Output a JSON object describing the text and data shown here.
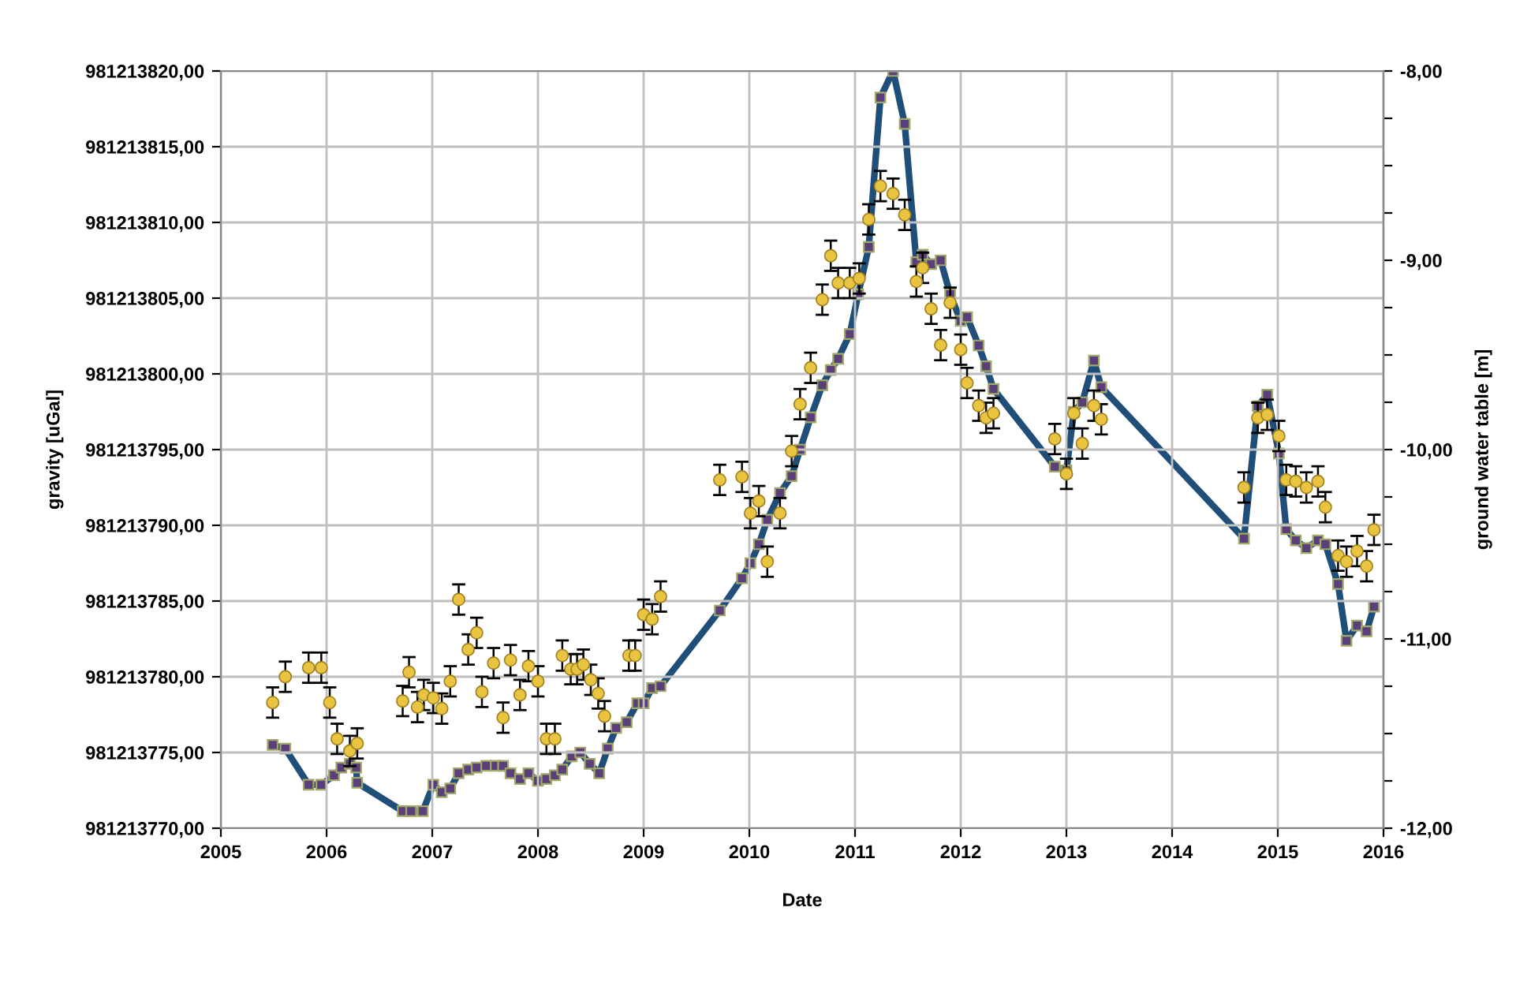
{
  "chart_data": {
    "type": "scatter",
    "xlabel": "Date",
    "ylabel": "gravity [uGal]",
    "y2label": "ground water table [m]",
    "xlim": [
      2005,
      2016
    ],
    "xticks": [
      2005,
      2006,
      2007,
      2008,
      2009,
      2010,
      2011,
      2012,
      2013,
      2014,
      2015,
      2016
    ],
    "ylim": [
      981213770,
      981213820
    ],
    "yticks": [
      {
        "value": 981213770,
        "label": "981213770,00"
      },
      {
        "value": 981213775,
        "label": "981213775,00"
      },
      {
        "value": 981213780,
        "label": "981213780,00"
      },
      {
        "value": 981213785,
        "label": "981213785,00"
      },
      {
        "value": 981213790,
        "label": "981213790,00"
      },
      {
        "value": 981213795,
        "label": "981213795,00"
      },
      {
        "value": 981213800,
        "label": "981213800,00"
      },
      {
        "value": 981213805,
        "label": "981213805,00"
      },
      {
        "value": 981213810,
        "label": "981213810,00"
      },
      {
        "value": 981213815,
        "label": "981213815,00"
      },
      {
        "value": 981213820,
        "label": "981213820,00"
      }
    ],
    "y2lim": [
      -12,
      -8
    ],
    "y2ticks": [
      {
        "value": -12,
        "label": "-12,00"
      },
      {
        "value": -11.75,
        "label": null
      },
      {
        "value": -11.5,
        "label": null
      },
      {
        "value": -11.25,
        "label": null
      },
      {
        "value": -11,
        "label": "-11,00"
      },
      {
        "value": -10.75,
        "label": null
      },
      {
        "value": -10.5,
        "label": null
      },
      {
        "value": -10.25,
        "label": null
      },
      {
        "value": -10,
        "label": "-10,00"
      },
      {
        "value": -9.75,
        "label": null
      },
      {
        "value": -9.5,
        "label": null
      },
      {
        "value": -9.25,
        "label": null
      },
      {
        "value": -9,
        "label": "-9,00"
      },
      {
        "value": -8.75,
        "label": null
      },
      {
        "value": -8.5,
        "label": null
      },
      {
        "value": -8.25,
        "label": null
      },
      {
        "value": -8,
        "label": "-8,00"
      }
    ],
    "grid": true,
    "legend": false,
    "series": [
      {
        "color": "#e8c440",
        "marker": "circle",
        "x": [
          2005.49,
          2005.61,
          2005.83,
          2005.95,
          2006.03,
          2006.1,
          2006.22,
          2006.29,
          2006.72,
          2006.78,
          2006.86,
          2006.92,
          2007.01,
          2007.09,
          2007.17,
          2007.25,
          2007.34,
          2007.42,
          2007.47,
          2007.58,
          2007.67,
          2007.74,
          2007.83,
          2007.91,
          2008.0,
          2008.08,
          2008.16,
          2008.23,
          2008.31,
          2008.37,
          2008.43,
          2008.5,
          2008.57,
          2008.63,
          2008.86,
          2008.92,
          2009.0,
          2009.08,
          2009.16,
          2009.72,
          2009.93,
          2010.01,
          2010.09,
          2010.17,
          2010.29,
          2010.4,
          2010.48,
          2010.58,
          2010.69,
          2010.77,
          2010.84,
          2010.95,
          2011.04,
          2011.13,
          2011.24,
          2011.36,
          2011.47,
          2011.58,
          2011.64,
          2011.72,
          2011.81,
          2011.9,
          2012.0,
          2012.06,
          2012.17,
          2012.24,
          2012.31,
          2012.89,
          2013.0,
          2013.07,
          2013.15,
          2013.26,
          2013.33,
          2014.68,
          2014.81,
          2014.9,
          2015.01,
          2015.08,
          2015.17,
          2015.27,
          2015.38,
          2015.45,
          2015.57,
          2015.65,
          2015.75,
          2015.84,
          2015.91
        ],
        "values": [
          981213778.3,
          981213780.0,
          981213780.6,
          981213780.6,
          981213778.3,
          981213775.9,
          981213775.1,
          981213775.6,
          981213778.4,
          981213780.3,
          981213778.0,
          981213778.8,
          981213778.6,
          981213777.9,
          981213779.7,
          981213785.1,
          981213781.8,
          981213782.9,
          981213779.0,
          981213780.9,
          981213777.3,
          981213781.1,
          981213778.8,
          981213780.7,
          981213779.7,
          981213775.9,
          981213775.9,
          981213781.4,
          981213780.5,
          981213780.5,
          981213780.8,
          981213779.8,
          981213778.9,
          981213777.4,
          981213781.4,
          981213781.4,
          981213784.1,
          981213783.8,
          981213785.3,
          981213793.0,
          981213793.2,
          981213790.8,
          981213791.6,
          981213787.6,
          981213790.8,
          981213794.9,
          981213798.0,
          981213800.4,
          981213804.9,
          981213807.8,
          981213806.0,
          981213806.0,
          981213806.3,
          981213810.2,
          981213812.4,
          981213811.9,
          981213810.5,
          981213806.1,
          981213807.0,
          981213804.3,
          981213801.9,
          981213804.7,
          981213801.6,
          981213799.4,
          981213797.9,
          981213797.1,
          981213797.4,
          981213795.7,
          981213793.4,
          981213797.4,
          981213795.4,
          981213797.9,
          981213797.0,
          981213792.5,
          981213797.1,
          981213797.3,
          981213795.9,
          981213793.0,
          981213792.9,
          981213792.5,
          981213792.9,
          981213791.2,
          981213788.0,
          981213787.6,
          981213788.3,
          981213787.3,
          981213789.7
        ],
        "errors": [
          1,
          1,
          1,
          1,
          1,
          1,
          1,
          1,
          1,
          1,
          1,
          1,
          1,
          1,
          1,
          1,
          1,
          1,
          1,
          1,
          1,
          1,
          1,
          1,
          1,
          1,
          1,
          1,
          1,
          1,
          1,
          1,
          1,
          1,
          1,
          1,
          1,
          1,
          1,
          1,
          1,
          1,
          1,
          1,
          1,
          1,
          1,
          1,
          1,
          1,
          1,
          1,
          1,
          1,
          1,
          1,
          1,
          1,
          1,
          1,
          1,
          1,
          1,
          1,
          1,
          1,
          1,
          1,
          1,
          1,
          1,
          1,
          1,
          1,
          1,
          1,
          1,
          1,
          1,
          1,
          1,
          1,
          1,
          1,
          1,
          1,
          1
        ]
      },
      {
        "type": "line",
        "axis": "y2",
        "color": "#1f4e79",
        "marker": "square",
        "line_style": "solid",
        "x": [
          2005.49,
          2005.61,
          2005.83,
          2005.95,
          2006.07,
          2006.14,
          2006.22,
          2006.28,
          2006.29,
          2006.72,
          2006.8,
          2006.91,
          2007.01,
          2007.09,
          2007.17,
          2007.25,
          2007.34,
          2007.42,
          2007.51,
          2007.6,
          2007.67,
          2007.74,
          2007.83,
          2007.91,
          2008.0,
          2008.08,
          2008.16,
          2008.23,
          2008.32,
          2008.4,
          2008.49,
          2008.58,
          2008.66,
          2008.74,
          2008.84,
          2008.94,
          2009.0,
          2009.08,
          2009.16,
          2009.72,
          2009.93,
          2010.01,
          2010.09,
          2010.17,
          2010.29,
          2010.4,
          2010.48,
          2010.58,
          2010.69,
          2010.77,
          2010.84,
          2010.95,
          2011.03,
          2011.13,
          2011.24,
          2011.36,
          2011.47,
          2011.58,
          2011.64,
          2011.72,
          2011.81,
          2011.9,
          2012.0,
          2012.06,
          2012.17,
          2012.24,
          2012.31,
          2012.89,
          2013.0,
          2013.07,
          2013.15,
          2013.26,
          2013.33,
          2014.68,
          2014.81,
          2014.9,
          2015.01,
          2015.08,
          2015.17,
          2015.27,
          2015.38,
          2015.45,
          2015.57,
          2015.65,
          2015.75,
          2015.84,
          2015.91
        ],
        "values": [
          -11.56,
          -11.58,
          -11.77,
          -11.77,
          -11.72,
          -11.68,
          -11.66,
          -11.68,
          -11.76,
          -11.91,
          -11.91,
          -11.91,
          -11.77,
          -11.81,
          -11.79,
          -11.71,
          -11.69,
          -11.68,
          -11.67,
          -11.67,
          -11.67,
          -11.71,
          -11.74,
          -11.71,
          -11.75,
          -11.74,
          -11.72,
          -11.69,
          -11.62,
          -11.6,
          -11.66,
          -11.71,
          -11.58,
          -11.47,
          -11.44,
          -11.34,
          -11.34,
          -11.26,
          -11.25,
          -10.85,
          -10.68,
          -10.6,
          -10.5,
          -10.37,
          -10.23,
          -10.14,
          -10.0,
          -9.83,
          -9.66,
          -9.58,
          -9.52,
          -9.39,
          -9.18,
          -8.93,
          -8.14,
          -8.0,
          -8.28,
          -9.01,
          -8.97,
          -9.02,
          -9.0,
          -9.18,
          -9.32,
          -9.3,
          -9.45,
          -9.56,
          -9.68,
          -10.09,
          -10.11,
          -9.8,
          -9.75,
          -9.53,
          -9.67,
          -10.47,
          -9.77,
          -9.71,
          -10.02,
          -10.42,
          -10.48,
          -10.52,
          -10.48,
          -10.5,
          -10.71,
          -11.01,
          -10.93,
          -10.96,
          -10.83
        ]
      }
    ]
  }
}
